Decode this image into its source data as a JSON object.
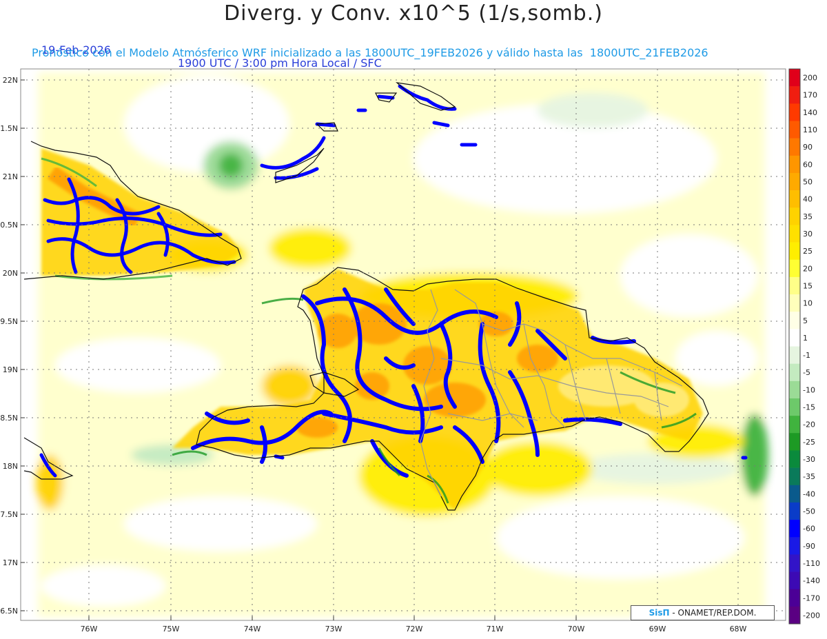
{
  "header": {
    "title": "Diverg. y Conv. x10^5 (1/s,somb.)",
    "date": "19-Feb-2026",
    "time_info": "1900 UTC / 3:00 pm Hora Local / SFC",
    "forecast_info": "Pronóstico con el Modelo Atmósferico WRF inicializado a las 1800UTC_19FEB2026 y válido hasta las  1800UTC_21FEB2026"
  },
  "axes": {
    "lat_labels": [
      "22N",
      "1.5N",
      "21N",
      "0.5N",
      "20N",
      "9.5N",
      "19N",
      "8.5N",
      "18N",
      "7.5N",
      "17N",
      "6.5N"
    ],
    "lon_labels": [
      "76W",
      "75W",
      "74W",
      "73W",
      "72W",
      "71W",
      "70W",
      "69W",
      "68W"
    ]
  },
  "colorbar": {
    "labels": [
      "200",
      "170",
      "140",
      "110",
      "90",
      "60",
      "50",
      "40",
      "35",
      "30",
      "25",
      "20",
      "15",
      "10",
      "5",
      "1",
      "-1",
      "-5",
      "-10",
      "-15",
      "-20",
      "-25",
      "-30",
      "-35",
      "-40",
      "-50",
      "-60",
      "-90",
      "-110",
      "-140",
      "-170",
      "-200"
    ],
    "colors": [
      "#e0001a",
      "#f01e10",
      "#ff3a00",
      "#ff5a00",
      "#ff7800",
      "#ff9600",
      "#ffaa00",
      "#ffbe00",
      "#ffd200",
      "#ffe000",
      "#ffee00",
      "#ffff33",
      "#ffff88",
      "#ffffbb",
      "#ffffe6",
      "#ffffff",
      "#e6f5e0",
      "#c4ebc0",
      "#9bdb96",
      "#6dc96a",
      "#40b33e",
      "#1d9a24",
      "#0a8a3c",
      "#0a7a5a",
      "#0a5a8c",
      "#0a3cc8",
      "#0000ff",
      "#1a1ae6",
      "#3214c8",
      "#3c0ab4",
      "#4b0096",
      "#5a0082"
    ]
  },
  "credit": {
    "logo": "SisΠ",
    "text": "- ONAMET/REP.DOM."
  }
}
